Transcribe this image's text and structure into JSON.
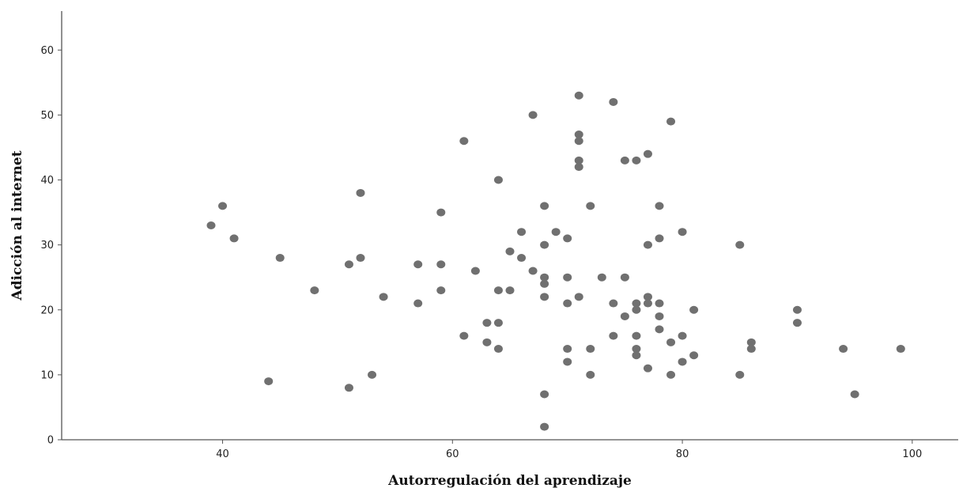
{
  "chart_data": {
    "type": "scatter",
    "title": "",
    "xlabel": "Autorregulación del aprendizaje",
    "ylabel": "Adicción al internet",
    "xlim": [
      26,
      104
    ],
    "ylim": [
      0,
      66
    ],
    "xticks": [
      40,
      60,
      80,
      100
    ],
    "yticks": [
      0,
      10,
      20,
      30,
      40,
      50,
      60
    ],
    "grid": false,
    "legend": "none",
    "point_color": "#707070",
    "points": [
      [
        39,
        33
      ],
      [
        40,
        36
      ],
      [
        41,
        31
      ],
      [
        44,
        9
      ],
      [
        45,
        28
      ],
      [
        48,
        23
      ],
      [
        51,
        27
      ],
      [
        51,
        8
      ],
      [
        52,
        38
      ],
      [
        52,
        28
      ],
      [
        53,
        10
      ],
      [
        54,
        22
      ],
      [
        57,
        27
      ],
      [
        57,
        21
      ],
      [
        59,
        35
      ],
      [
        59,
        27
      ],
      [
        59,
        23
      ],
      [
        61,
        46
      ],
      [
        61,
        16
      ],
      [
        62,
        26
      ],
      [
        63,
        18
      ],
      [
        63,
        15
      ],
      [
        64,
        40
      ],
      [
        64,
        23
      ],
      [
        64,
        18
      ],
      [
        64,
        14
      ],
      [
        65,
        29
      ],
      [
        65,
        23
      ],
      [
        66,
        32
      ],
      [
        66,
        28
      ],
      [
        67,
        50
      ],
      [
        67,
        26
      ],
      [
        68,
        36
      ],
      [
        68,
        30
      ],
      [
        68,
        25
      ],
      [
        68,
        24
      ],
      [
        68,
        22
      ],
      [
        68,
        7
      ],
      [
        68,
        2
      ],
      [
        69,
        32
      ],
      [
        70,
        31
      ],
      [
        70,
        25
      ],
      [
        70,
        21
      ],
      [
        70,
        14
      ],
      [
        70,
        12
      ],
      [
        71,
        53
      ],
      [
        71,
        47
      ],
      [
        71,
        46
      ],
      [
        71,
        43
      ],
      [
        71,
        42
      ],
      [
        71,
        22
      ],
      [
        72,
        36
      ],
      [
        72,
        14
      ],
      [
        72,
        10
      ],
      [
        73,
        25
      ],
      [
        74,
        52
      ],
      [
        74,
        21
      ],
      [
        74,
        16
      ],
      [
        75,
        43
      ],
      [
        75,
        25
      ],
      [
        75,
        19
      ],
      [
        76,
        43
      ],
      [
        76,
        21
      ],
      [
        76,
        20
      ],
      [
        76,
        16
      ],
      [
        76,
        14
      ],
      [
        76,
        13
      ],
      [
        77,
        44
      ],
      [
        77,
        30
      ],
      [
        77,
        22
      ],
      [
        77,
        21
      ],
      [
        77,
        11
      ],
      [
        78,
        36
      ],
      [
        78,
        31
      ],
      [
        78,
        21
      ],
      [
        78,
        19
      ],
      [
        78,
        17
      ],
      [
        79,
        49
      ],
      [
        79,
        15
      ],
      [
        79,
        10
      ],
      [
        80,
        32
      ],
      [
        80,
        16
      ],
      [
        80,
        12
      ],
      [
        81,
        20
      ],
      [
        81,
        13
      ],
      [
        85,
        30
      ],
      [
        85,
        10
      ],
      [
        86,
        15
      ],
      [
        86,
        14
      ],
      [
        90,
        20
      ],
      [
        90,
        18
      ],
      [
        94,
        14
      ],
      [
        95,
        7
      ],
      [
        99,
        14
      ]
    ]
  }
}
